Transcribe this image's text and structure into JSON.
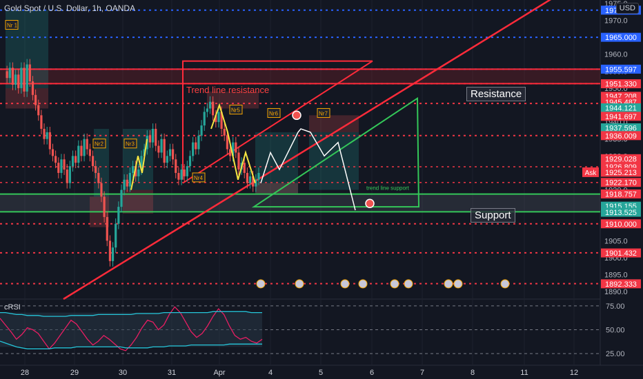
{
  "header": {
    "title": "Gold Spot / U.S. Dollar, 1h, OANDA",
    "currency": "USD"
  },
  "colors": {
    "background": "#131722",
    "up": "#26a69a",
    "down": "#ef5350",
    "red_line": "#ff2b3a",
    "green_line": "#34c759",
    "blue_line": "#2962ff",
    "yellow": "#f5e642"
  },
  "annotations": {
    "resistance": "Resistance",
    "support": "Support",
    "trend_line_resistance": "Trend line resistance",
    "trend_line_support": "trend line support",
    "ask": "Ask",
    "markers": [
      "Nr 1",
      "Nr2",
      "Nr3",
      "Nr4",
      "Nr5",
      "Nr6",
      "Nr7"
    ]
  },
  "rsi_label": "cRSI",
  "chart_data": [
    {
      "type": "candlestick",
      "title": "Gold Spot / U.S. Dollar, 1h, OANDA",
      "ylim": [
        1888,
        1976
      ],
      "y_ticks": [
        1890,
        1895,
        1900,
        1905,
        1910,
        1915,
        1920,
        1925,
        1930,
        1935,
        1940,
        1945,
        1950,
        1955,
        1960,
        1965,
        1970,
        1975
      ],
      "x_ticks": [
        "28",
        "29",
        "30",
        "31",
        "Apr",
        "4",
        "5",
        "6",
        "7",
        "8",
        "11",
        "12"
      ],
      "price_labels": [
        {
          "value": "1973.000",
          "color": "#2962ff"
        },
        {
          "value": "1965.000",
          "color": "#2962ff"
        },
        {
          "value": "1955.597",
          "color": "#2962ff"
        },
        {
          "value": "1951.330",
          "color": "#f23645"
        },
        {
          "value": "1947.208",
          "color": "#f23645"
        },
        {
          "value": "1945.487",
          "color": "#f23645"
        },
        {
          "value": "1944.121",
          "color": "#26a69a"
        },
        {
          "value": "1941.697",
          "color": "#f23645"
        },
        {
          "value": "1937.596",
          "color": "#26a69a"
        },
        {
          "value": "1936.009",
          "color": "#f23645"
        },
        {
          "value": "1929.028",
          "color": "#f23645"
        },
        {
          "value": "1926.809",
          "color": "#f23645"
        },
        {
          "value": "1925.213",
          "color": "#f23645"
        },
        {
          "value": "1922.170",
          "color": "#f23645"
        },
        {
          "value": "1918.757",
          "color": "#f23645"
        },
        {
          "value": "1915.155",
          "color": "#26a69a"
        },
        {
          "value": "1913.525",
          "color": "#26a69a"
        },
        {
          "value": "1910.000",
          "color": "#f23645"
        },
        {
          "value": "1901.432",
          "color": "#f23645"
        },
        {
          "value": "1892.333",
          "color": "#f23645"
        }
      ],
      "series": [
        {
          "values": [
            1955,
            1953,
            1956,
            1951,
            1954,
            1950,
            1956,
            1949,
            1957,
            1952,
            1948,
            1945,
            1942,
            1938,
            1935,
            1937,
            1932,
            1930,
            1928,
            1925,
            1929,
            1926,
            1922,
            1927,
            1930,
            1928,
            1933,
            1930,
            1935,
            1932,
            1930,
            1927,
            1925,
            1922,
            1918,
            1912,
            1905,
            1899,
            1903,
            1910,
            1915,
            1920,
            1923,
            1921,
            1925,
            1927,
            1924,
            1926,
            1930,
            1932,
            1936,
            1934,
            1938,
            1933,
            1931,
            1935,
            1928,
            1930,
            1932,
            1929,
            1925,
            1923,
            1926,
            1924,
            1927,
            1930,
            1934,
            1932,
            1936,
            1939,
            1943,
            1944,
            1946,
            1942,
            1940,
            1943,
            1938,
            1936,
            1932,
            1930,
            1934,
            1931,
            1926,
            1928,
            1925,
            1922,
            1924,
            1921,
            1923,
            1925
          ]
        }
      ]
    },
    {
      "type": "line",
      "title": "cRSI",
      "ylim": [
        20,
        80
      ],
      "y_ticks": [
        25,
        50,
        75
      ],
      "series": [
        {
          "values": [
            62,
            55,
            48,
            40,
            45,
            52,
            50,
            46,
            38,
            30,
            36,
            44,
            52,
            60,
            56,
            48,
            40,
            34,
            38,
            44,
            40,
            35,
            30,
            28,
            34,
            42,
            52,
            60,
            58,
            50,
            55,
            66,
            74,
            68,
            58,
            48,
            42,
            46,
            54,
            64,
            72,
            66,
            54,
            44,
            40,
            42,
            38,
            36,
            40
          ]
        },
        {
          "values": [
            68,
            68,
            67,
            66,
            66,
            65,
            65,
            65,
            64,
            64,
            64,
            64,
            64,
            65,
            65,
            65,
            65,
            65,
            66,
            66,
            66,
            66,
            66,
            66,
            66,
            67,
            67,
            67,
            67,
            67,
            68,
            68,
            68,
            68,
            68,
            68,
            68,
            68,
            68,
            69,
            69,
            69,
            69,
            69,
            69,
            69,
            68,
            68,
            68
          ]
        },
        {
          "values": [
            38,
            36,
            34,
            32,
            31,
            30,
            30,
            30,
            30,
            30,
            31,
            31,
            31,
            31,
            32,
            32,
            32,
            32,
            32,
            32,
            32,
            32,
            32,
            31,
            31,
            31,
            31,
            31,
            32,
            32,
            32,
            33,
            33,
            33,
            33,
            34,
            34,
            34,
            34,
            34,
            34,
            34,
            35,
            35,
            35,
            35,
            35,
            35,
            35
          ]
        }
      ]
    }
  ]
}
